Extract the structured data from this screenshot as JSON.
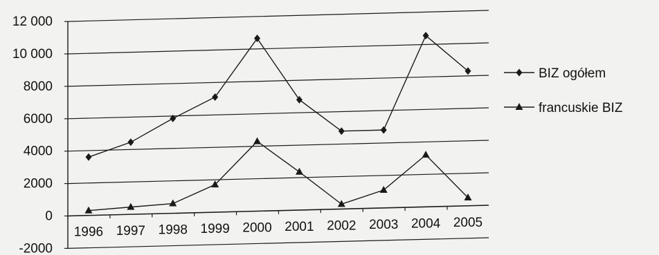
{
  "chart_data": {
    "type": "line",
    "categories": [
      "1996",
      "1997",
      "1998",
      "1999",
      "2000",
      "2001",
      "2002",
      "2003",
      "2004",
      "2005"
    ],
    "ylim": [
      -2000,
      12000
    ],
    "yticks": [
      12000,
      10000,
      8000,
      6000,
      4000,
      2000,
      0,
      -2000
    ],
    "ytick_labels": [
      "12 000",
      "10 000",
      "8000",
      "6000",
      "4000",
      "2000",
      "0",
      "-2000"
    ],
    "grid": true,
    "legend_position": "right",
    "series": [
      {
        "name": "BIZ ogółem",
        "marker": "diamond",
        "values": [
          3600,
          4450,
          5850,
          7100,
          10650,
          6800,
          4800,
          4800,
          10550,
          8300
        ]
      },
      {
        "name": "francuskie BIZ",
        "marker": "triangle",
        "values": [
          300,
          450,
          600,
          1700,
          4300,
          2350,
          300,
          1100,
          3200,
          500
        ]
      }
    ],
    "colors": {
      "line": "#1a1a1a",
      "grid": "#1a1a1a",
      "background": "#f2f2f0"
    }
  }
}
